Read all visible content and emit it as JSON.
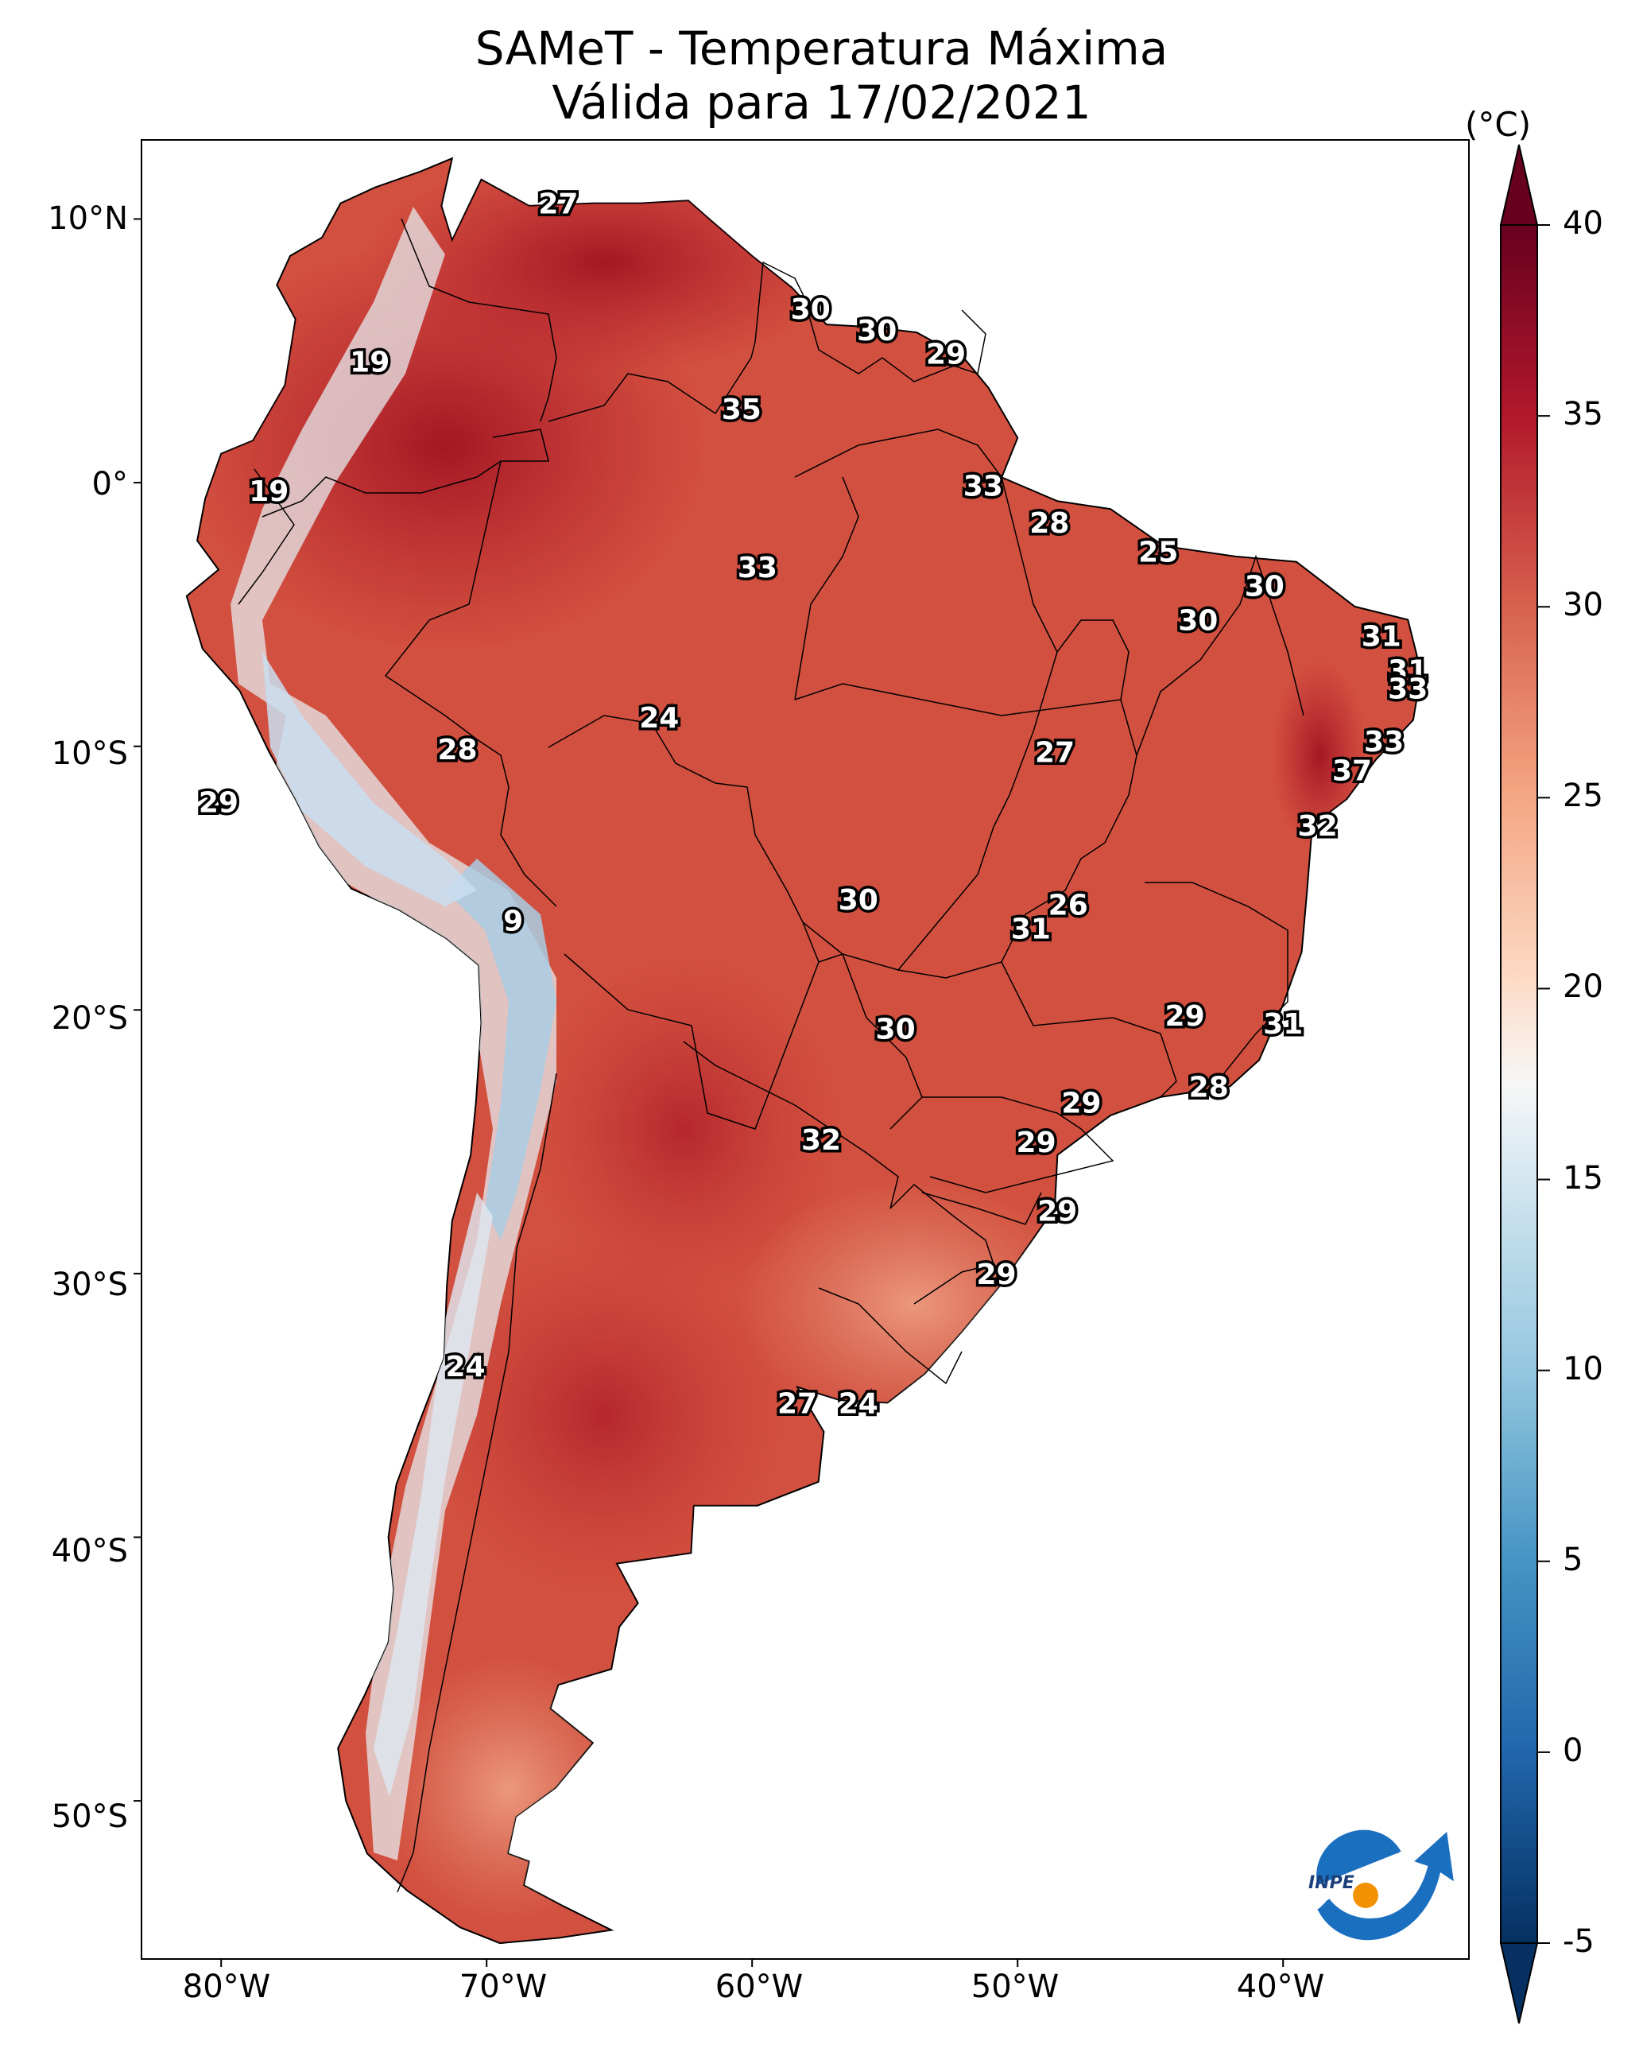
{
  "title": {
    "line1": "SAMeT - Temperatura Máxima",
    "line2": "Válida para 17/02/2021"
  },
  "map": {
    "lat_labels": [
      "10°N",
      "0°",
      "10°S",
      "20°S",
      "30°S",
      "40°S",
      "50°S"
    ],
    "lon_labels": [
      "80°W",
      "70°W",
      "60°W",
      "50°W",
      "40°W"
    ],
    "value_labels": [
      {
        "text": "27",
        "lon": -67.3,
        "lat": 10.6
      },
      {
        "text": "30",
        "lon": -57.8,
        "lat": 6.6
      },
      {
        "text": "30",
        "lon": -55.3,
        "lat": 5.8
      },
      {
        "text": "29",
        "lon": -52.7,
        "lat": 4.9
      },
      {
        "text": "19",
        "lon": -74.4,
        "lat": 4.6
      },
      {
        "text": "35",
        "lon": -60.4,
        "lat": 2.8
      },
      {
        "text": "19",
        "lon": -78.2,
        "lat": -0.3
      },
      {
        "text": "33",
        "lon": -51.3,
        "lat": -0.1
      },
      {
        "text": "28",
        "lon": -48.8,
        "lat": -1.5
      },
      {
        "text": "25",
        "lon": -44.7,
        "lat": -2.6
      },
      {
        "text": "33",
        "lon": -59.8,
        "lat": -3.2
      },
      {
        "text": "30",
        "lon": -40.7,
        "lat": -3.9
      },
      {
        "text": "30",
        "lon": -43.2,
        "lat": -5.2
      },
      {
        "text": "31",
        "lon": -36.3,
        "lat": -5.8
      },
      {
        "text": "31",
        "lon": -35.3,
        "lat": -7.1
      },
      {
        "text": "33",
        "lon": -35.3,
        "lat": -7.8
      },
      {
        "text": "24",
        "lon": -63.5,
        "lat": -8.9
      },
      {
        "text": "28",
        "lon": -71.1,
        "lat": -10.1
      },
      {
        "text": "27",
        "lon": -48.6,
        "lat": -10.2
      },
      {
        "text": "33",
        "lon": -36.2,
        "lat": -9.8
      },
      {
        "text": "37",
        "lon": -37.4,
        "lat": -10.9
      },
      {
        "text": "29",
        "lon": -80.1,
        "lat": -12.1
      },
      {
        "text": "32",
        "lon": -38.7,
        "lat": -13.0
      },
      {
        "text": "30",
        "lon": -56.0,
        "lat": -15.8
      },
      {
        "text": "26",
        "lon": -48.1,
        "lat": -16.0
      },
      {
        "text": "31",
        "lon": -49.5,
        "lat": -16.9
      },
      {
        "text": "9",
        "lon": -69.0,
        "lat": -16.6
      },
      {
        "text": "29",
        "lon": -43.7,
        "lat": -20.2
      },
      {
        "text": "31",
        "lon": -40.0,
        "lat": -20.5
      },
      {
        "text": "30",
        "lon": -54.6,
        "lat": -20.7
      },
      {
        "text": "28",
        "lon": -42.8,
        "lat": -22.9
      },
      {
        "text": "29",
        "lon": -47.6,
        "lat": -23.5
      },
      {
        "text": "32",
        "lon": -57.4,
        "lat": -24.9
      },
      {
        "text": "29",
        "lon": -49.3,
        "lat": -25.0
      },
      {
        "text": "29",
        "lon": -48.5,
        "lat": -27.6
      },
      {
        "text": "29",
        "lon": -50.8,
        "lat": -30.0
      },
      {
        "text": "24",
        "lon": -70.8,
        "lat": -33.5
      },
      {
        "text": "27",
        "lon": -58.3,
        "lat": -34.9
      },
      {
        "text": "24",
        "lon": -56.0,
        "lat": -34.9
      }
    ]
  },
  "colorbar": {
    "unit": "(°C)",
    "ticks": [
      "40",
      "35",
      "30",
      "25",
      "20",
      "15",
      "10",
      "5",
      "0",
      "-5"
    ],
    "min": -5,
    "max": 40,
    "colors": {
      "cold": "#053061",
      "cool": "#4393c3",
      "mid": "#f7f7f7",
      "warm": "#f4a582",
      "hot": "#b2182b",
      "hottest": "#67001f"
    }
  },
  "logo": {
    "text": "INPE",
    "colors": {
      "blue": "#1a6fbf",
      "orange": "#f39200"
    }
  }
}
